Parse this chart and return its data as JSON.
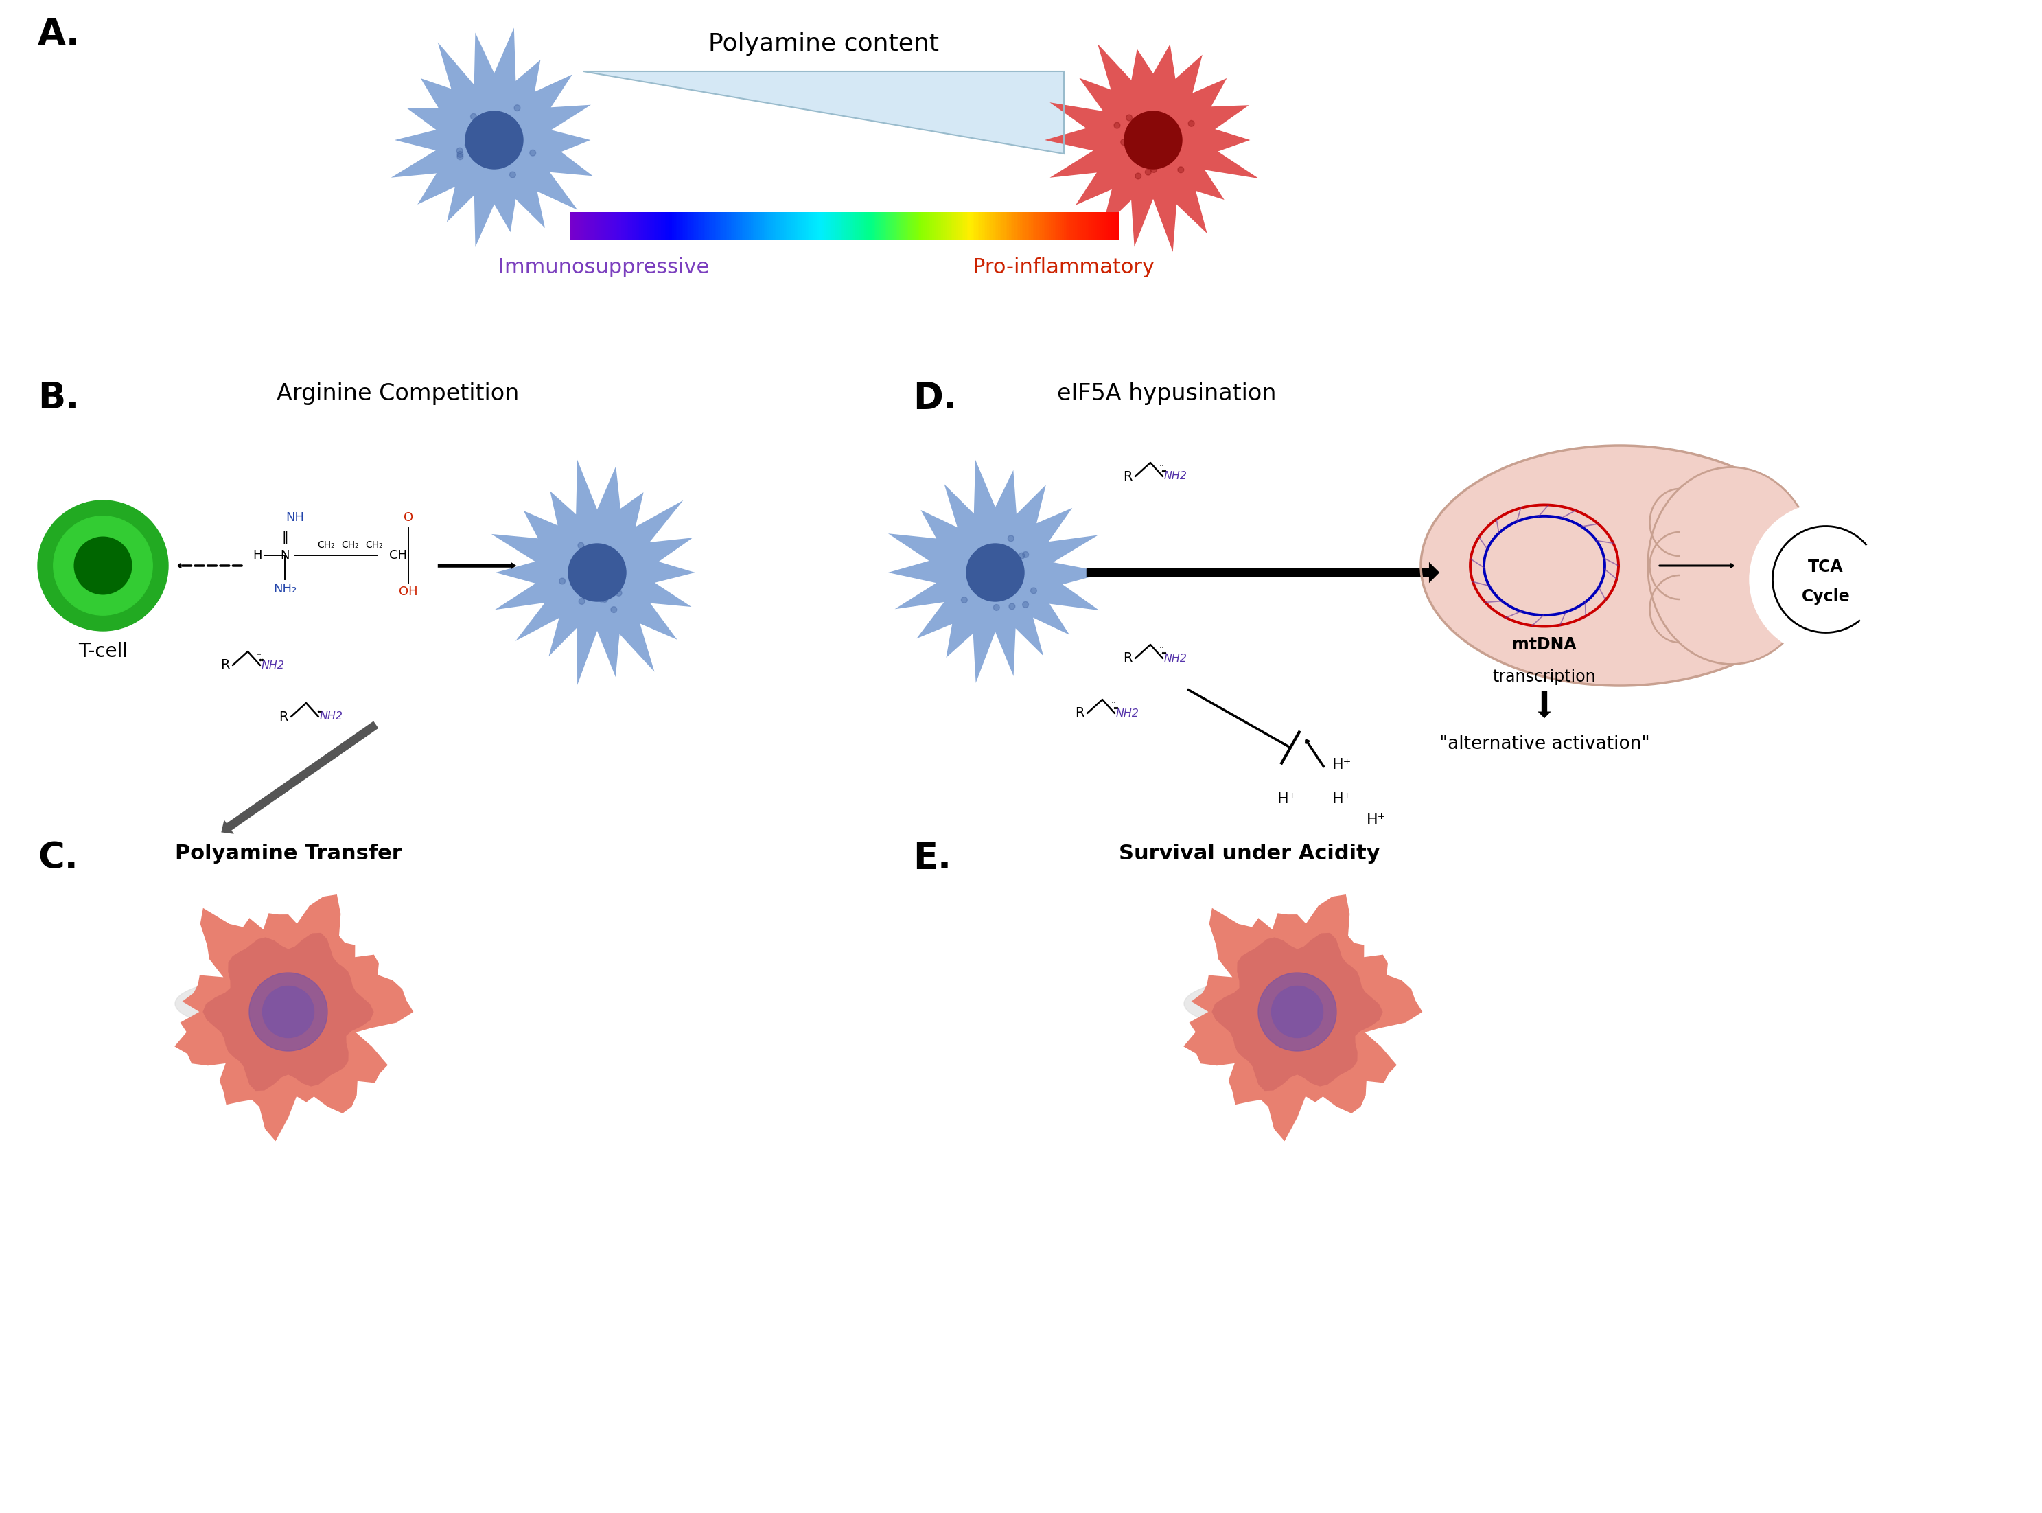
{
  "fig_width": 29.75,
  "fig_height": 22.04,
  "bg_color": "#ffffff",
  "panel_A": {
    "label": "A.",
    "title": "Polyamine content",
    "left_label": "Immunosuppressive",
    "right_label": "Pro-inflammatory",
    "left_color": "#7B3FBE",
    "right_color": "#CC2200",
    "colorbar_colors": [
      "#7700CC",
      "#4400EE",
      "#0000FF",
      "#0055FF",
      "#00AAFF",
      "#00EEFF",
      "#00FF88",
      "#88FF00",
      "#FFEE00",
      "#FF8800",
      "#FF3300",
      "#FF0000"
    ],
    "blue_cell_color": "#8BAAD8",
    "blue_cell_dark": "#5570A8",
    "blue_nucleus": "#3A5A9A",
    "red_cell_color": "#E05555",
    "red_cell_dark": "#AA1515",
    "red_nucleus": "#880808"
  },
  "panel_B": {
    "label": "B.",
    "title": "Arginine Competition",
    "tcell_label": "T-cell"
  },
  "panel_C": {
    "label": "C.",
    "title": "Polyamine Transfer"
  },
  "panel_D": {
    "label": "D.",
    "title": "eIF5A hypusination",
    "alt_activation": "\"alternative activation\""
  },
  "panel_E": {
    "label": "E.",
    "title": "Survival under Acidity"
  },
  "arrow_color": "#000000",
  "purple_color": "#5533AA",
  "dna_red": "#CC0000",
  "dna_blue": "#0000BB",
  "mito_color": "#F2D0C8",
  "mito_border": "#C8A090"
}
